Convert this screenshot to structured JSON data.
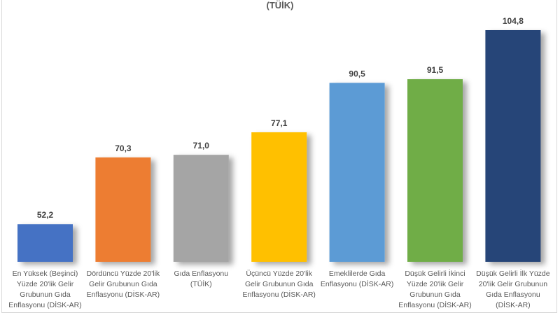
{
  "chart_data": {
    "type": "bar",
    "title": "(TÜİK)",
    "categories": [
      "En Yüksek (Beşinci) Yüzde 20'lik Gelir Grubunun Gıda Enflasyonu (DİSK-AR)",
      "Dördüncü Yüzde 20'lik Gelir Grubunun Gıda Enflasyonu (DİSK-AR)",
      "Gıda Enflasyonu (TÜİK)",
      "Üçüncü Yüzde 20'lik Gelir Grubunun Gıda Enflasyonu (DİSK-AR)",
      "Emeklilerde Gıda Enflasyonu (DİSK-AR)",
      "Düşük Gelirli İkinci Yüzde 20'lik Gelir Grubunun Gıda Enflasyonu (DİSK-AR)",
      "Düşük Gelirli İlk Yüzde 20'lik Gelir Grubunun Gıda Enflasyonu (DİSK-AR)"
    ],
    "values": [
      52.2,
      70.3,
      71.0,
      77.1,
      90.5,
      91.5,
      104.8
    ],
    "data_labels": [
      "52,2",
      "70,3",
      "71,0",
      "77,1",
      "90,5",
      "91,5",
      "104,8"
    ],
    "colors": [
      "#4472c4",
      "#ed7d31",
      "#a5a5a5",
      "#ffc000",
      "#5b9bd5",
      "#70ad47",
      "#264478"
    ],
    "xlabel": "",
    "ylabel": "",
    "ylim": [
      42,
      105
    ],
    "grid": false,
    "legend": "none"
  }
}
